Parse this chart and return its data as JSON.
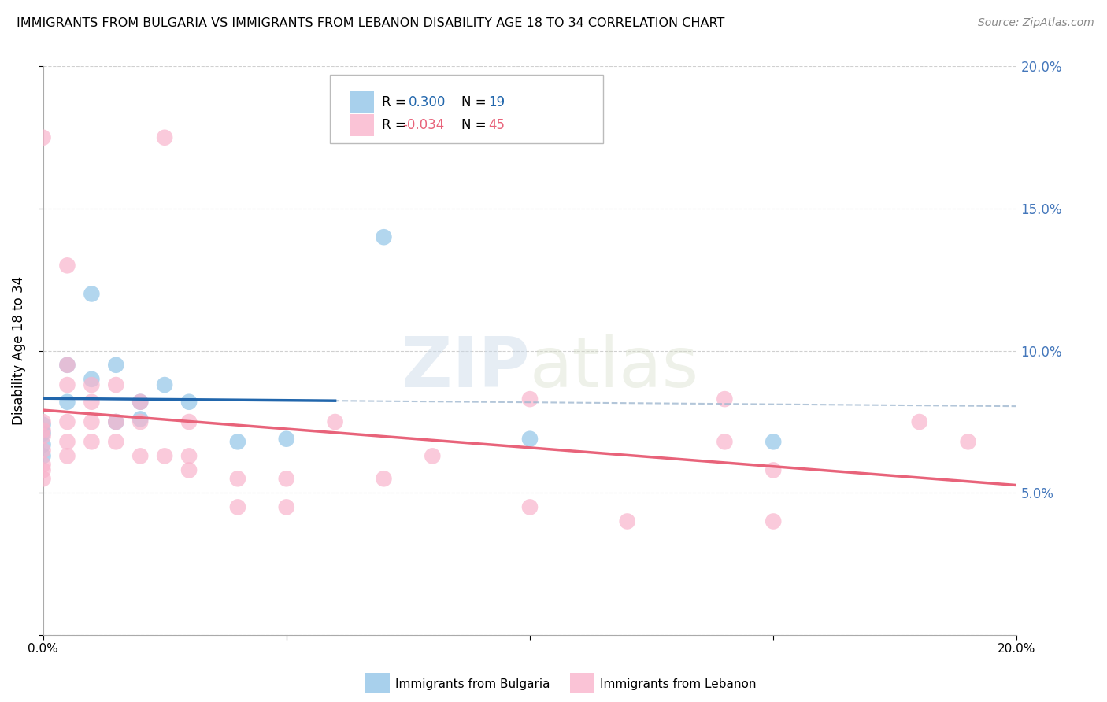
{
  "title": "IMMIGRANTS FROM BULGARIA VS IMMIGRANTS FROM LEBANON DISABILITY AGE 18 TO 34 CORRELATION CHART",
  "source": "Source: ZipAtlas.com",
  "ylabel": "Disability Age 18 to 34",
  "xlim": [
    0.0,
    0.2
  ],
  "ylim": [
    0.0,
    0.2
  ],
  "x_ticks": [
    0.0,
    0.05,
    0.1,
    0.15,
    0.2
  ],
  "x_tick_labels": [
    "0.0%",
    "",
    "",
    "",
    "20.0%"
  ],
  "y_ticks": [
    0.0,
    0.05,
    0.1,
    0.15,
    0.2
  ],
  "y_tick_labels_right": [
    "",
    "5.0%",
    "10.0%",
    "15.0%",
    "20.0%"
  ],
  "legend_entries": [
    {
      "label_r": "0.300",
      "label_n": "19",
      "color": "#6baed6"
    },
    {
      "label_r": "-0.034",
      "label_n": "45",
      "color": "#fb9dc0"
    }
  ],
  "bulgaria_color": "#92c5e8",
  "lebanon_color": "#f9b4cc",
  "bulgaria_line_color": "#2166ac",
  "lebanon_line_color": "#e8637a",
  "dashed_line_color": "#a0b8d0",
  "bulgaria_points": [
    [
      0.0,
      0.074
    ],
    [
      0.0,
      0.071
    ],
    [
      0.0,
      0.067
    ],
    [
      0.0,
      0.063
    ],
    [
      0.005,
      0.095
    ],
    [
      0.005,
      0.082
    ],
    [
      0.01,
      0.12
    ],
    [
      0.01,
      0.09
    ],
    [
      0.015,
      0.095
    ],
    [
      0.015,
      0.075
    ],
    [
      0.02,
      0.082
    ],
    [
      0.02,
      0.076
    ],
    [
      0.025,
      0.088
    ],
    [
      0.03,
      0.082
    ],
    [
      0.04,
      0.068
    ],
    [
      0.05,
      0.069
    ],
    [
      0.07,
      0.14
    ],
    [
      0.1,
      0.069
    ],
    [
      0.15,
      0.068
    ]
  ],
  "lebanon_points": [
    [
      0.0,
      0.175
    ],
    [
      0.0,
      0.075
    ],
    [
      0.0,
      0.07
    ],
    [
      0.0,
      0.065
    ],
    [
      0.0,
      0.06
    ],
    [
      0.0,
      0.055
    ],
    [
      0.0,
      0.072
    ],
    [
      0.0,
      0.058
    ],
    [
      0.005,
      0.13
    ],
    [
      0.005,
      0.095
    ],
    [
      0.005,
      0.088
    ],
    [
      0.005,
      0.075
    ],
    [
      0.005,
      0.068
    ],
    [
      0.005,
      0.063
    ],
    [
      0.01,
      0.088
    ],
    [
      0.01,
      0.082
    ],
    [
      0.01,
      0.075
    ],
    [
      0.01,
      0.068
    ],
    [
      0.015,
      0.088
    ],
    [
      0.015,
      0.075
    ],
    [
      0.015,
      0.068
    ],
    [
      0.02,
      0.082
    ],
    [
      0.02,
      0.075
    ],
    [
      0.02,
      0.063
    ],
    [
      0.025,
      0.175
    ],
    [
      0.025,
      0.063
    ],
    [
      0.03,
      0.075
    ],
    [
      0.03,
      0.063
    ],
    [
      0.03,
      0.058
    ],
    [
      0.04,
      0.055
    ],
    [
      0.04,
      0.045
    ],
    [
      0.05,
      0.055
    ],
    [
      0.05,
      0.045
    ],
    [
      0.06,
      0.075
    ],
    [
      0.07,
      0.055
    ],
    [
      0.08,
      0.063
    ],
    [
      0.1,
      0.083
    ],
    [
      0.1,
      0.045
    ],
    [
      0.12,
      0.04
    ],
    [
      0.14,
      0.083
    ],
    [
      0.14,
      0.068
    ],
    [
      0.15,
      0.04
    ],
    [
      0.15,
      0.058
    ],
    [
      0.18,
      0.075
    ],
    [
      0.19,
      0.068
    ]
  ],
  "watermark": "ZIPatlas",
  "background_color": "#ffffff",
  "grid_color": "#d0d0d0"
}
